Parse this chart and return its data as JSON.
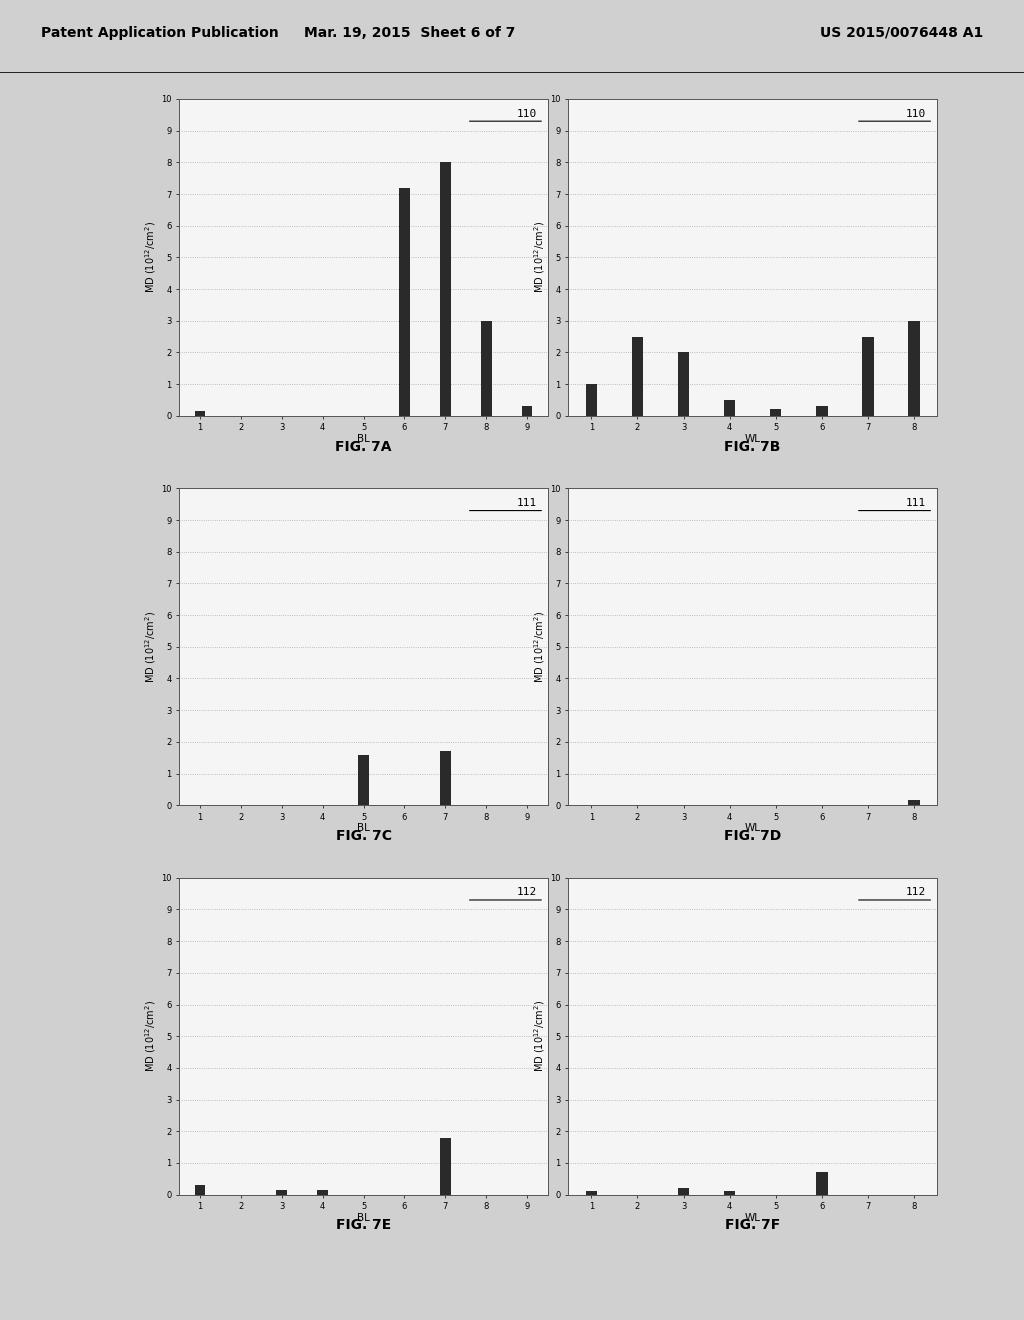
{
  "background_color": "#d0d0d0",
  "header_text": "Patent Application Publication",
  "header_date": "Mar. 19, 2015  Sheet 6 of 7",
  "header_patent": "US 2015/0076448 A1",
  "charts": [
    {
      "label": "110",
      "fig_label": "FIG. 7A",
      "x_axis_label": "BL",
      "x_values": [
        1,
        2,
        3,
        4,
        5,
        6,
        7,
        8,
        9
      ],
      "y_values": [
        0.15,
        0.0,
        0.0,
        0.0,
        0.0,
        7.2,
        8.0,
        3.0,
        0.3
      ],
      "ylim": [
        0,
        10
      ],
      "yticks": [
        0,
        1,
        2,
        3,
        4,
        5,
        6,
        7,
        8,
        9,
        10
      ]
    },
    {
      "label": "110",
      "fig_label": "FIG. 7B",
      "x_axis_label": "WL",
      "x_values": [
        1,
        2,
        3,
        4,
        5,
        6,
        7,
        8
      ],
      "y_values": [
        1.0,
        2.5,
        2.0,
        0.5,
        0.2,
        0.3,
        2.5,
        3.0
      ],
      "ylim": [
        0,
        10
      ],
      "yticks": [
        0,
        1,
        2,
        3,
        4,
        5,
        6,
        7,
        8,
        9,
        10
      ]
    },
    {
      "label": "111",
      "fig_label": "FIG. 7C",
      "x_axis_label": "BL",
      "x_values": [
        1,
        2,
        3,
        4,
        5,
        6,
        7,
        8,
        9
      ],
      "y_values": [
        0.0,
        0.0,
        0.0,
        0.0,
        1.6,
        0.0,
        1.7,
        0.0,
        0.0
      ],
      "ylim": [
        0,
        10
      ],
      "yticks": [
        0,
        1,
        2,
        3,
        4,
        5,
        6,
        7,
        8,
        9,
        10
      ]
    },
    {
      "label": "111",
      "fig_label": "FIG. 7D",
      "x_axis_label": "WL",
      "x_values": [
        1,
        2,
        3,
        4,
        5,
        6,
        7,
        8
      ],
      "y_values": [
        0.0,
        0.0,
        0.0,
        0.0,
        0.0,
        0.0,
        0.0,
        0.15
      ],
      "ylim": [
        0,
        10
      ],
      "yticks": [
        0,
        1,
        2,
        3,
        4,
        5,
        6,
        7,
        8,
        9,
        10
      ]
    },
    {
      "label": "112",
      "fig_label": "FIG. 7E",
      "x_axis_label": "BL",
      "x_values": [
        1,
        2,
        3,
        4,
        5,
        6,
        7,
        8,
        9
      ],
      "y_values": [
        0.3,
        0.0,
        0.15,
        0.15,
        0.0,
        0.0,
        1.8,
        0.0,
        0.0
      ],
      "ylim": [
        0,
        10
      ],
      "yticks": [
        0,
        1,
        2,
        3,
        4,
        5,
        6,
        7,
        8,
        9,
        10
      ]
    },
    {
      "label": "112",
      "fig_label": "FIG. 7F",
      "x_axis_label": "WL",
      "x_values": [
        1,
        2,
        3,
        4,
        5,
        6,
        7,
        8
      ],
      "y_values": [
        0.1,
        0.0,
        0.2,
        0.1,
        0.0,
        0.7,
        0.0,
        0.0
      ],
      "ylim": [
        0,
        10
      ],
      "yticks": [
        0,
        1,
        2,
        3,
        4,
        5,
        6,
        7,
        8,
        9,
        10
      ]
    }
  ],
  "bar_color": "#2a2a2a",
  "bar_width": 0.25,
  "grid_linestyle": ":",
  "grid_color": "#aaaaaa",
  "grid_linewidth": 0.6,
  "axes_bg": "#f5f5f5",
  "spine_color": "#555555",
  "tick_fontsize": 6,
  "ylabel_fontsize": 7,
  "xlabel_fontsize": 7.5,
  "label_fontsize": 8,
  "fig_label_fontsize": 10
}
